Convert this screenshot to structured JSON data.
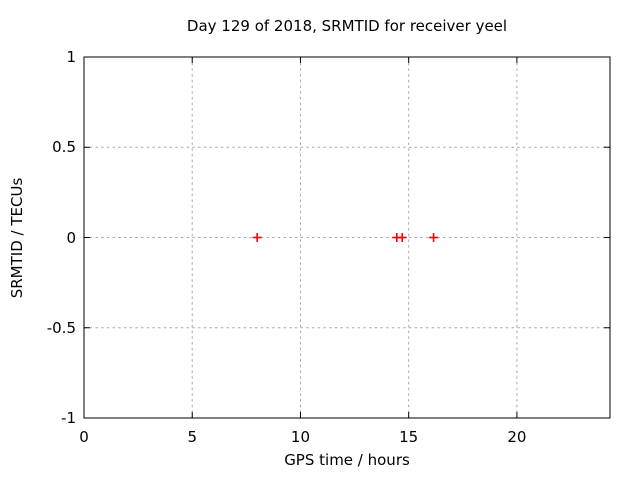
{
  "colors": {
    "background": "#ffffff",
    "plot_border": "#000000",
    "grid": "#a8a8a8",
    "marker": "#ff0000",
    "text": "#000000"
  },
  "chart_data": {
    "type": "scatter",
    "title": "Day 129 of 2018, SRMTID for receiver yeel",
    "xlabel": "GPS time / hours",
    "ylabel": "SRMTID / TECUs",
    "xlim": [
      0,
      24.3
    ],
    "ylim": [
      -1,
      1
    ],
    "grid": true,
    "legend": "none",
    "marker_style": "plus",
    "xticks": [
      {
        "v": 0,
        "label": "0"
      },
      {
        "v": 5,
        "label": "5"
      },
      {
        "v": 10,
        "label": "10"
      },
      {
        "v": 15,
        "label": "15"
      },
      {
        "v": 20,
        "label": "20"
      }
    ],
    "yticks": [
      {
        "v": -1,
        "label": "-1"
      },
      {
        "v": -0.5,
        "label": "-0.5"
      },
      {
        "v": 0,
        "label": "0"
      },
      {
        "v": 0.5,
        "label": "0.5"
      },
      {
        "v": 1,
        "label": "1"
      }
    ],
    "series": [
      {
        "marker": "plus",
        "color": "#ff0000",
        "points": [
          {
            "x": 8.0,
            "y": 0
          },
          {
            "x": 14.45,
            "y": 0
          },
          {
            "x": 14.7,
            "y": 0
          },
          {
            "x": 16.15,
            "y": 0
          }
        ]
      }
    ]
  }
}
